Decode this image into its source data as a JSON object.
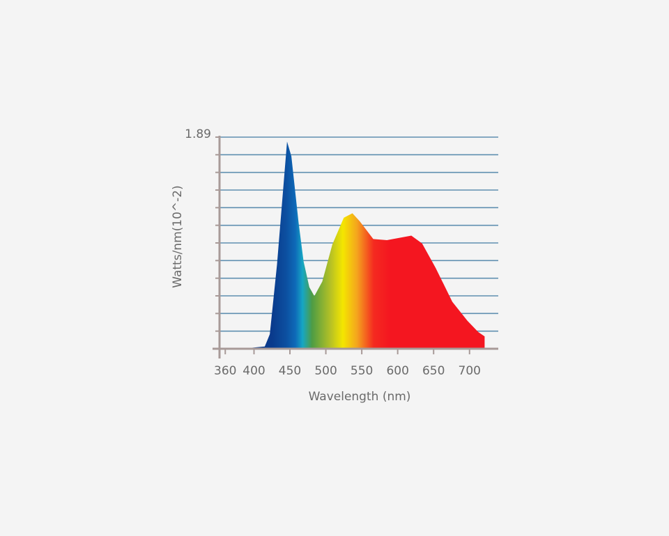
{
  "chart_data": {
    "type": "area",
    "x_label": "Wavelength (nm)",
    "y_label": "Watts/nm(10^-2)",
    "x": [
      382,
      415,
      422,
      432,
      446,
      452,
      462,
      469,
      477,
      484,
      495,
      509,
      525,
      537,
      547,
      566,
      585,
      619,
      634,
      653,
      676,
      697,
      712,
      721
    ],
    "values": [
      0,
      0.02,
      0.13,
      0.75,
      1.85,
      1.72,
      1.13,
      0.78,
      0.55,
      0.47,
      0.6,
      0.93,
      1.17,
      1.21,
      1.14,
      0.98,
      0.97,
      1.01,
      0.94,
      0.72,
      0.42,
      0.25,
      0.15,
      0.11
    ],
    "xlim": [
      352,
      740
    ],
    "xticks": [
      360,
      400,
      450,
      500,
      550,
      600,
      650,
      700
    ],
    "ylim": [
      0,
      1.89
    ],
    "yticks": [
      1.89
    ],
    "grid_divisions": 12,
    "grid": true
  }
}
